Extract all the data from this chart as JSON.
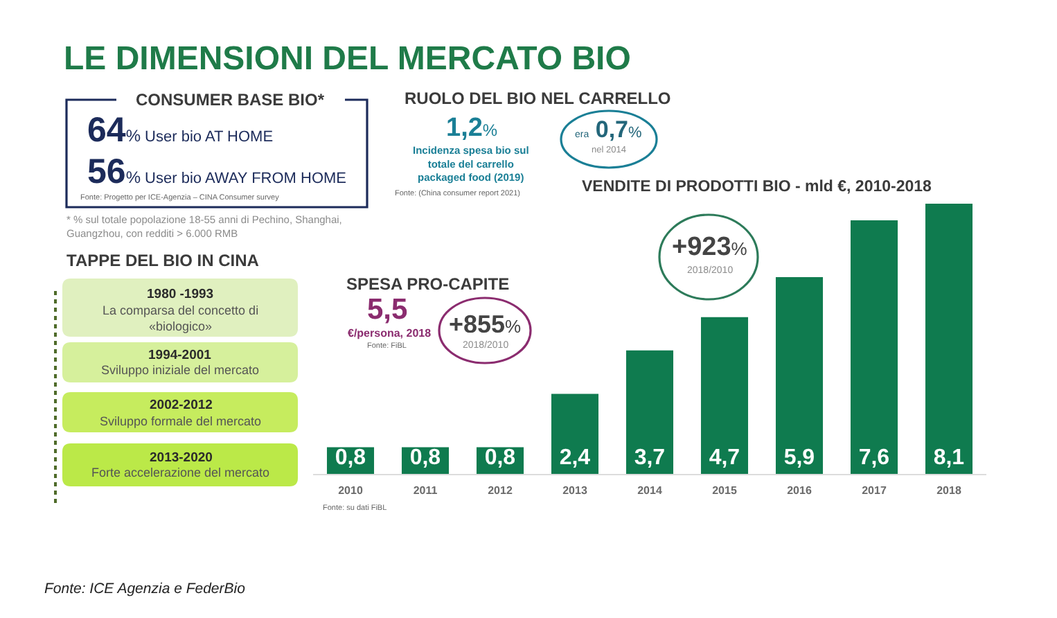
{
  "chart_data": [
    {
      "type": "other",
      "title": "LE DIMENSIONI DEL MERCATO BIO",
      "annotations": [
        "Fonte: ICE Agenzia e FederBio"
      ]
    },
    {
      "type": "other",
      "title": "CONSUMER BASE BIO*",
      "annotations": [
        "64% User bio AT HOME",
        "56% User bio AWAY FROM HOME",
        "Fonte: Progetto per ICE-Agenzia – CINA Consumer survey",
        "* % sul totale popolazione 18-55 anni di Pechino, Shanghai, Guangzhou, con redditi > 6.000 RMB"
      ]
    },
    {
      "type": "other",
      "title": "RUOLO DEL BIO NEL CARRELLO",
      "annotations": [
        "1,2%",
        "Incidenza spesa bio sul totale del carrello packaged food (2019)",
        "Fonte: (China consumer report 2021)",
        "era 0,7%",
        "nel 2014"
      ]
    },
    {
      "type": "other",
      "title": "TAPPE DEL BIO IN CINA",
      "annotations": [
        "1980 -1993",
        "La comparsa del concetto di «biologico»",
        "1994-2001",
        "Sviluppo iniziale del mercato",
        "2002-2012",
        "Sviluppo formale del mercato",
        "2013-2020",
        "Forte accelerazione del mercato"
      ]
    },
    {
      "type": "other",
      "title": "SPESA PRO-CAPITE",
      "annotations": [
        "5,5",
        "€/persona, 2018",
        "Fonte: FiBL",
        "+855%",
        "2018/2010"
      ]
    },
    {
      "type": "bar",
      "title": "VENDITE DI PRODOTTI BIO - mld €, 2010-2018",
      "categories": [
        "2010",
        "2011",
        "2012",
        "2013",
        "2014",
        "2015",
        "2016",
        "2017",
        "2018"
      ],
      "values": [
        0.8,
        0.8,
        0.8,
        2.4,
        3.7,
        4.7,
        5.9,
        7.6,
        8.1
      ],
      "value_labels": [
        "0,8",
        "0,8",
        "0,8",
        "2,4",
        "3,7",
        "4,7",
        "5,9",
        "7,6",
        "8,1"
      ],
      "color": "#0f7b4f",
      "tick_labels": "x",
      "annotations": [
        "+923%",
        "2018/2010",
        "Fonte: su dati FiBL"
      ]
    }
  ]
}
